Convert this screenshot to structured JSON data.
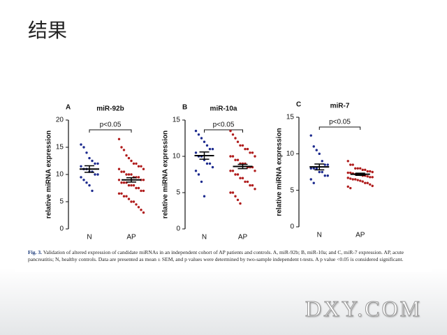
{
  "slide_title": "结果",
  "chart_data": [
    {
      "type": "strip",
      "panel": "A",
      "title": "miR-92b",
      "ylabel": "relative miRNA expression",
      "annotation": "p<0.05",
      "categories": [
        "N",
        "AP"
      ],
      "ylim": [
        0,
        20
      ],
      "yticks": [
        0,
        5,
        10,
        15,
        20
      ],
      "groups": [
        {
          "color": "#1c2a8e",
          "mean": 11,
          "sem": 0.6,
          "values": [
            15.5,
            15,
            14,
            13,
            12.5,
            12,
            12,
            11.5,
            11,
            11,
            10.5,
            10.5,
            10,
            10,
            9.5,
            9,
            8.5,
            8,
            7
          ]
        },
        {
          "color": "#b01c1c",
          "mean": 9,
          "sem": 0.4,
          "values": [
            16.5,
            15,
            14.5,
            13.5,
            13,
            12.5,
            12,
            12,
            11.5,
            11.5,
            11,
            11,
            10.5,
            10.5,
            10,
            10,
            10,
            9.5,
            9.5,
            9.5,
            9,
            9,
            9,
            8.5,
            8.5,
            8.5,
            8,
            8,
            8,
            7.5,
            7.5,
            7,
            7,
            6.5,
            6.5,
            6,
            6,
            5.5,
            5,
            5,
            4.5,
            4,
            3.5,
            3
          ]
        }
      ]
    },
    {
      "type": "strip",
      "panel": "B",
      "title": "miR-10a",
      "ylabel": "relative miRNA expression",
      "annotation": "p<0.05",
      "categories": [
        "N",
        "AP"
      ],
      "ylim": [
        0,
        15
      ],
      "yticks": [
        0,
        5,
        10,
        15
      ],
      "groups": [
        {
          "color": "#1c2a8e",
          "mean": 10.1,
          "sem": 0.5,
          "values": [
            13.5,
            13,
            12.5,
            12,
            11.5,
            11,
            11,
            10.5,
            10,
            10,
            9.5,
            9,
            9,
            8.5,
            8,
            7.5,
            6.5,
            4.5
          ]
        },
        {
          "color": "#b01c1c",
          "mean": 8.6,
          "sem": 0.3,
          "values": [
            13.5,
            13,
            12.5,
            12,
            11.5,
            11.5,
            11,
            11,
            10.5,
            10.5,
            10,
            10,
            10,
            9.5,
            9.5,
            9,
            9,
            9,
            8.5,
            8.5,
            8.5,
            8,
            8,
            8,
            7.5,
            7.5,
            7,
            7,
            6.5,
            6.5,
            6,
            6,
            5.5,
            5,
            5,
            4.5,
            4,
            3.5
          ]
        }
      ]
    },
    {
      "type": "strip",
      "panel": "C",
      "title": "miR-7",
      "ylabel": "relative miRNA expression",
      "annotation": "p<0.05",
      "categories": [
        "N",
        "AP"
      ],
      "ylim": [
        0,
        15
      ],
      "yticks": [
        0,
        5,
        10,
        15
      ],
      "groups": [
        {
          "color": "#1c2a8e",
          "mean": 8.2,
          "sem": 0.4,
          "values": [
            12.5,
            11,
            10.5,
            10,
            9,
            8.5,
            8.5,
            8,
            8,
            8,
            7.5,
            7.5,
            7,
            7,
            6.5,
            6
          ]
        },
        {
          "color": "#b01c1c",
          "mean": 7.2,
          "sem": 0.15,
          "values": [
            9,
            8.5,
            8.5,
            8,
            8,
            8,
            7.8,
            7.8,
            7.6,
            7.6,
            7.5,
            7.4,
            7.4,
            7.3,
            7.2,
            7.2,
            7.1,
            7,
            7,
            6.9,
            6.8,
            6.8,
            6.7,
            6.6,
            6.5,
            6.5,
            6.4,
            6.3,
            6.2,
            6,
            6,
            5.8,
            5.6,
            5.5,
            5.3
          ]
        }
      ]
    }
  ],
  "caption": {
    "label": "Fig. 3.",
    "text": "Validation of altered expression of candidate miRNAs in an independent cohort of AP patients and controls. A, miR-92b; B, miR-10a; and C, miR-7 expression. AP, acute pancreatitis; N, healthy controls. Data are presented as mean ± SEM, and p values were determined by two-sample independent t-tests. A p value <0.05 is considered significant."
  },
  "watermark": "DXY.COM"
}
